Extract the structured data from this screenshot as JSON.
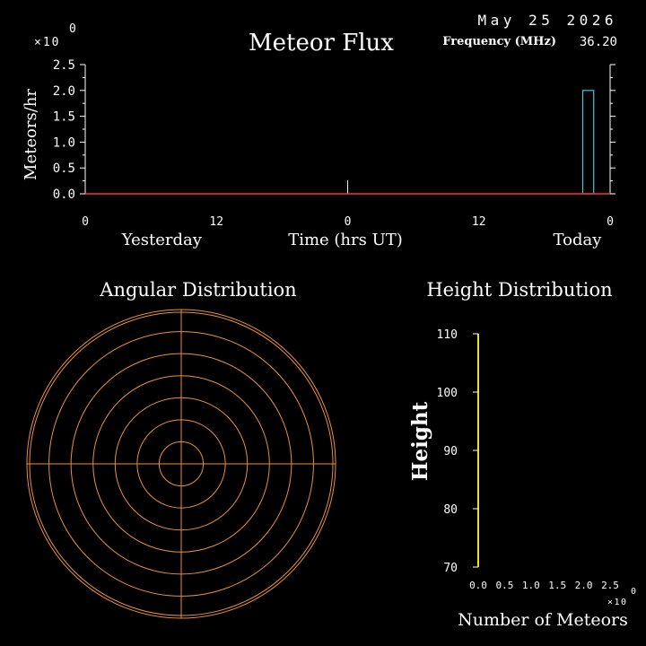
{
  "header": {
    "date": "May 25 2026",
    "frequency_label": "Frequency (MHz)",
    "frequency_value": "36.20",
    "exponent_base": "×10",
    "exponent_power": "0"
  },
  "colors": {
    "background": "#000000",
    "axis": "#ffffff",
    "baseline": "#ff3030",
    "flux_bar": "#40c8d8",
    "polar_grid": "#e8903a",
    "height_bar": "#e8e030"
  },
  "chart_data": [
    {
      "type": "bar",
      "title": "Meteor Flux",
      "ylabel": "Meteors/hr",
      "xlabel": "Time (hrs UT)",
      "ylim": [
        0,
        2.5
      ],
      "yticks": [
        "0.0",
        "0.5",
        "1.0",
        "1.5",
        "2.0",
        "2.5"
      ],
      "xlim_hours": [
        -48,
        0
      ],
      "xticks": [
        {
          "hour": -48,
          "label": "0"
        },
        {
          "hour": -36,
          "label": "12"
        },
        {
          "hour": -24,
          "label": "0"
        },
        {
          "hour": -12,
          "label": "12"
        },
        {
          "hour": 0,
          "label": "0"
        }
      ],
      "day_labels": [
        {
          "hour": -41,
          "label": "Yesterday"
        },
        {
          "hour": -3,
          "label": "Today"
        }
      ],
      "baseline": 0,
      "midnight_marker_hour": -24,
      "bars": [
        {
          "start_hour": -2.5,
          "end_hour": -1.5,
          "value": 2.0
        }
      ]
    },
    {
      "type": "polar",
      "title": "Angular Distribution",
      "rings": 7,
      "points": []
    },
    {
      "type": "bar",
      "title": "Height Distribution",
      "ylabel": "Height",
      "xlabel": "Number of Meteors",
      "ylim": [
        70,
        110
      ],
      "yticks": [
        "70",
        "80",
        "90",
        "100",
        "110"
      ],
      "xlim": [
        0,
        2.5
      ],
      "xticks": [
        "0.0",
        "0.5",
        "1.0",
        "1.5",
        "2.0",
        "2.5"
      ],
      "x_exponent_base": "×10",
      "x_exponent_power": "0",
      "values": []
    }
  ]
}
